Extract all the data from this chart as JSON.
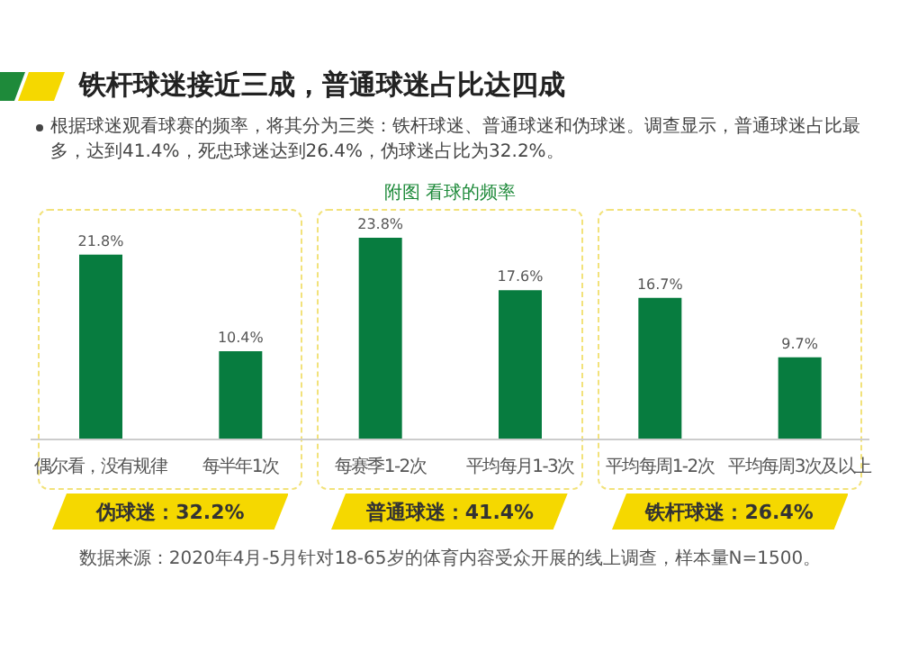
{
  "chart_data": {
    "type": "bar",
    "title": "铁杆球迷接近三成，普通球迷占比达四成",
    "subtitle": "根据球迷观看球赛的频率，将其分为三类：铁杆球迷、普通球迷和伪球迷。调查显示，普通球迷占比最多，达到41.4%，死忠球迷达到26.4%，伪球迷占比为32.2%。",
    "categories": [
      "偶尔看，没有规律",
      "每半年1次",
      "每赛季1-2次",
      "平均每月1-3次",
      "平均每周1-2次",
      "平均每周3次及以上"
    ],
    "values": [
      21.8,
      10.4,
      23.8,
      17.6,
      16.7,
      9.7
    ],
    "value_labels": [
      "21.8%",
      "10.4%",
      "23.8%",
      "17.6%",
      "16.7%",
      "9.7%"
    ],
    "color": "#077c3f",
    "annotations": [
      "附图  看球的频率",
      "伪球迷：32.2%",
      "普通球迷：41.4%",
      "铁杆球迷：26.4%",
      "数据来源：2020年4月-5月针对18-65岁的体育内容受众开展的线上调查，样本量N=1500。"
    ],
    "grid": false,
    "legend": false
  }
}
